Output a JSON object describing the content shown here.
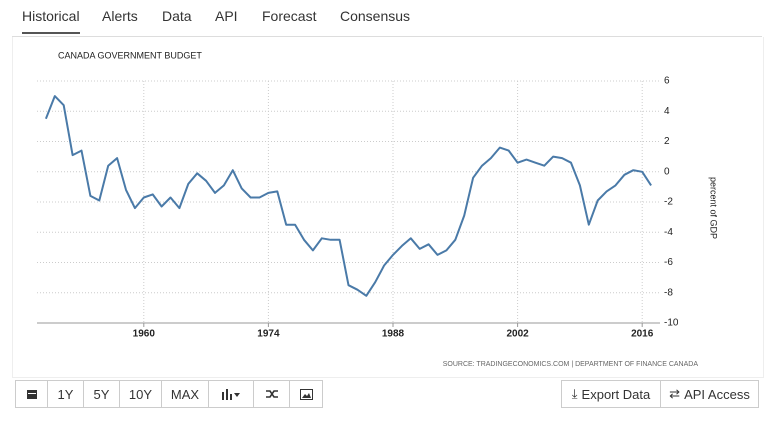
{
  "tabs": [
    "Historical",
    "Alerts",
    "Data",
    "API",
    "Forecast",
    "Consensus"
  ],
  "chart_data": {
    "type": "line",
    "title": "CANADA GOVERNMENT BUDGET",
    "ylabel": "percent of GDP",
    "source": "SOURCE: TRADINGECONOMICS.COM | DEPARTMENT OF FINANCE CANADA",
    "x": [
      1949,
      1950,
      1951,
      1952,
      1953,
      1954,
      1955,
      1956,
      1957,
      1958,
      1959,
      1960,
      1961,
      1962,
      1963,
      1964,
      1965,
      1966,
      1967,
      1968,
      1969,
      1970,
      1971,
      1972,
      1973,
      1974,
      1975,
      1976,
      1977,
      1978,
      1979,
      1980,
      1981,
      1982,
      1983,
      1984,
      1985,
      1986,
      1987,
      1988,
      1989,
      1990,
      1991,
      1992,
      1993,
      1994,
      1995,
      1996,
      1997,
      1998,
      1999,
      2000,
      2001,
      2002,
      2003,
      2004,
      2005,
      2006,
      2007,
      2008,
      2009,
      2010,
      2011,
      2012,
      2013,
      2014,
      2015,
      2016,
      2017
    ],
    "series": [
      {
        "name": "Canada Government Budget",
        "color": "#4a7aa8",
        "values": [
          3.5,
          5.0,
          4.4,
          1.1,
          1.4,
          -1.6,
          -1.9,
          0.4,
          0.9,
          -1.2,
          -2.4,
          -1.7,
          -1.5,
          -2.3,
          -1.7,
          -2.4,
          -0.8,
          -0.1,
          -0.6,
          -1.4,
          -0.9,
          0.1,
          -1.1,
          -1.7,
          -1.7,
          -1.4,
          -1.3,
          -3.5,
          -3.5,
          -4.5,
          -5.2,
          -4.4,
          -4.5,
          -4.5,
          -7.5,
          -7.8,
          -8.2,
          -7.3,
          -6.2,
          -5.5,
          -4.9,
          -4.4,
          -5.1,
          -4.8,
          -5.5,
          -5.2,
          -4.5,
          -2.9,
          -0.4,
          0.4,
          0.9,
          1.6,
          1.4,
          0.6,
          0.8,
          0.6,
          0.4,
          1.0,
          0.9,
          0.6,
          -0.9,
          -3.5,
          -1.9,
          -1.3,
          -0.9,
          -0.2,
          0.1,
          0.0,
          -0.9
        ]
      }
    ],
    "xlim": [
      1948,
      2018
    ],
    "xticks": [
      1960,
      1974,
      1988,
      2002,
      2016
    ],
    "ylim": [
      -10,
      6
    ],
    "yticks": [
      -10,
      -8,
      -6,
      -4,
      -2,
      0,
      2,
      4,
      6
    ],
    "grid": true
  },
  "toolbar": {
    "ranges": [
      "1Y",
      "5Y",
      "10Y",
      "MAX"
    ],
    "actions": [
      "Export Data",
      "API Access"
    ]
  }
}
